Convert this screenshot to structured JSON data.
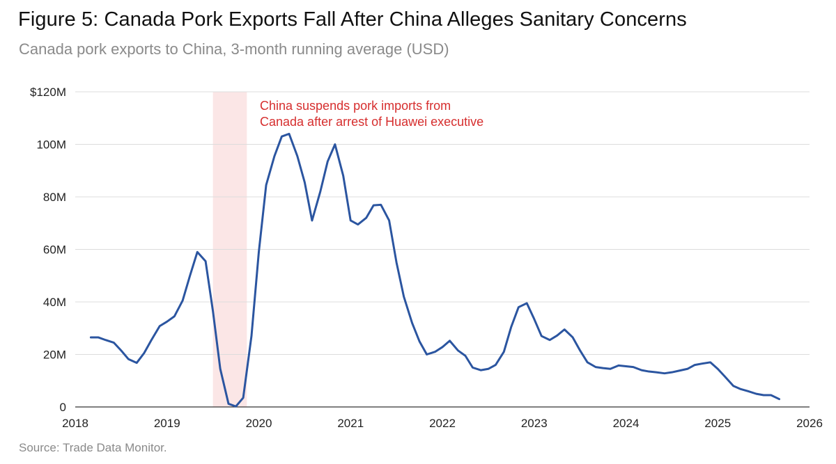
{
  "header": {
    "title": "Figure 5: Canada Pork Exports Fall After China Alleges Sanitary Concerns",
    "subtitle": "Canada pork exports to China, 3-month running average (USD)"
  },
  "footer": {
    "source": "Source: Trade Data Monitor."
  },
  "chart_data": {
    "type": "line",
    "title": "Figure 5: Canada Pork Exports Fall After China Alleges Sanitary Concerns",
    "subtitle": "Canada pork exports to China, 3-month running average (USD)",
    "xlabel": "",
    "ylabel": "",
    "xlim": [
      2018,
      2026
    ],
    "ylim": [
      0,
      120000000
    ],
    "x_ticks": [
      2018,
      2019,
      2020,
      2021,
      2022,
      2023,
      2024,
      2025,
      2026
    ],
    "x_tick_labels": [
      "2018",
      "2019",
      "2020",
      "2021",
      "2022",
      "2023",
      "2024",
      "2025",
      "2026"
    ],
    "y_ticks": [
      0,
      20000000,
      40000000,
      60000000,
      80000000,
      100000000,
      120000000
    ],
    "y_tick_labels": [
      "0",
      "20M",
      "40M",
      "60M",
      "80M",
      "100M",
      "$120M"
    ],
    "grid": "horizontal",
    "line_color": "#2b55a0",
    "shade_color": "#fbe6e6",
    "shaded_region": {
      "x": [
        2019.5,
        2019.87
      ]
    },
    "annotation": {
      "lines": [
        "China suspends pork imports from",
        "Canada after arrest of Huawei executive"
      ],
      "color": "#d62e2e"
    },
    "series": [
      {
        "x": [
          2018.17,
          2018.25,
          2018.33,
          2018.42,
          2018.5,
          2018.58,
          2018.67,
          2018.75,
          2018.83,
          2018.92,
          2019.0,
          2019.08,
          2019.17,
          2019.25,
          2019.33,
          2019.42,
          2019.5,
          2019.58,
          2019.67,
          2019.75,
          2019.83,
          2019.92,
          2020.0,
          2020.08,
          2020.17,
          2020.25,
          2020.33,
          2020.42,
          2020.5,
          2020.58,
          2020.67,
          2020.75,
          2020.83,
          2020.92,
          2021.0,
          2021.08,
          2021.17,
          2021.25,
          2021.33,
          2021.42,
          2021.5,
          2021.58,
          2021.67,
          2021.75,
          2021.83,
          2021.92,
          2022.0,
          2022.08,
          2022.17,
          2022.25,
          2022.33,
          2022.42,
          2022.5,
          2022.58,
          2022.67,
          2022.75,
          2022.83,
          2022.92,
          2023.0,
          2023.08,
          2023.17,
          2023.25,
          2023.33,
          2023.42,
          2023.5,
          2023.58,
          2023.67,
          2023.75,
          2023.83,
          2023.92,
          2024.0,
          2024.08,
          2024.17,
          2024.25,
          2024.33,
          2024.42,
          2024.5,
          2024.58,
          2024.67,
          2024.75,
          2024.83,
          2024.92,
          2025.0,
          2025.08,
          2025.17,
          2025.25,
          2025.33,
          2025.42,
          2025.5,
          2025.58,
          2025.67
        ],
        "values": [
          26.5,
          26.5,
          25.5,
          24.5,
          21.5,
          18.2,
          16.8,
          20.5,
          25.5,
          30.8,
          32.5,
          34.5,
          40.5,
          50.0,
          59.0,
          55.5,
          36.5,
          14.5,
          1.2,
          0.2,
          3.5,
          27.0,
          59.0,
          84.5,
          95.5,
          103.0,
          104.0,
          95.5,
          85.5,
          71.0,
          82.0,
          93.5,
          100.0,
          88.0,
          71.0,
          69.5,
          72.0,
          76.8,
          77.0,
          71.0,
          55.0,
          42.0,
          32.0,
          25.0,
          20.0,
          21.0,
          22.8,
          25.2,
          21.5,
          19.5,
          15.0,
          14.0,
          14.5,
          16.0,
          21.0,
          30.5,
          38.0,
          39.5,
          33.5,
          27.0,
          25.5,
          27.2,
          29.5,
          26.5,
          21.5,
          17.0,
          15.2,
          14.8,
          14.5,
          15.8,
          15.5,
          15.2,
          14.0,
          13.5,
          13.2,
          12.8,
          13.2,
          13.8,
          14.5,
          16.0,
          16.5,
          17.0,
          14.5,
          11.5,
          8.0,
          6.8,
          6.0,
          5.0,
          4.5,
          4.5,
          3.0
        ],
        "values_unit": "millions USD"
      }
    ]
  }
}
